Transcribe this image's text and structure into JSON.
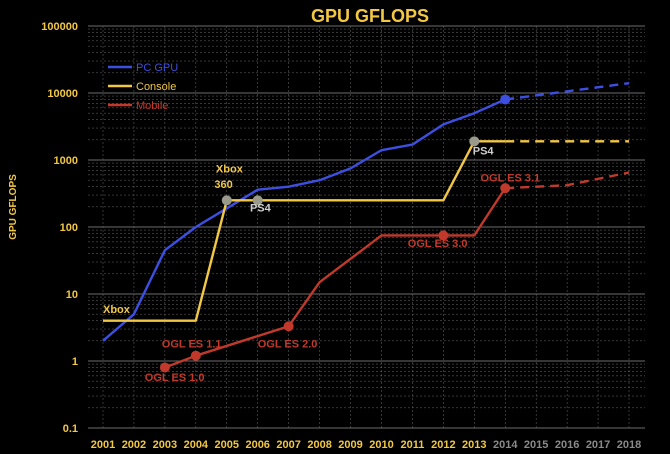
{
  "chart_data": {
    "type": "line",
    "title": "GPU GFLOPS",
    "ylabel": "GPU GFLOPS",
    "xlabel": "",
    "yscale": "log",
    "ylim": [
      0.1,
      100000
    ],
    "xlim": [
      2001,
      2018
    ],
    "grid": true,
    "legend_position": "top-left",
    "colors": {
      "background": "#000000",
      "axis_text_y": "#f2c744",
      "axis_text_x": "#f2c744",
      "axis_text_x_future": "#8a8a8a",
      "grid": "#6b6b6b",
      "title": "#f2c744",
      "marker_gray": "#9a9a8a"
    },
    "y_ticks": [
      {
        "value": 0.1,
        "label": "0.1"
      },
      {
        "value": 1,
        "label": "1"
      },
      {
        "value": 10,
        "label": "10"
      },
      {
        "value": 100,
        "label": "100"
      },
      {
        "value": 1000,
        "label": "1000"
      },
      {
        "value": 10000,
        "label": "10000"
      },
      {
        "value": 100000,
        "label": "100000"
      }
    ],
    "x_ticks": [
      {
        "value": 2001,
        "label": "2001",
        "future": false
      },
      {
        "value": 2002,
        "label": "2002",
        "future": false
      },
      {
        "value": 2003,
        "label": "2003",
        "future": false
      },
      {
        "value": 2004,
        "label": "2004",
        "future": false
      },
      {
        "value": 2005,
        "label": "2005",
        "future": false
      },
      {
        "value": 2006,
        "label": "2006",
        "future": false
      },
      {
        "value": 2007,
        "label": "2007",
        "future": false
      },
      {
        "value": 2008,
        "label": "2008",
        "future": false
      },
      {
        "value": 2009,
        "label": "2009",
        "future": false
      },
      {
        "value": 2010,
        "label": "2010",
        "future": false
      },
      {
        "value": 2011,
        "label": "2011",
        "future": false
      },
      {
        "value": 2012,
        "label": "2012",
        "future": false
      },
      {
        "value": 2013,
        "label": "2013",
        "future": false
      },
      {
        "value": 2014,
        "label": "2014",
        "future": true
      },
      {
        "value": 2015,
        "label": "2015",
        "future": true
      },
      {
        "value": 2016,
        "label": "2016",
        "future": true
      },
      {
        "value": 2017,
        "label": "2017",
        "future": true
      },
      {
        "value": 2018,
        "label": "2018",
        "future": true
      }
    ],
    "series": [
      {
        "name": "PC GPU",
        "color": "#3d4fe0",
        "points": [
          {
            "x": 2001,
            "y": 2
          },
          {
            "x": 2002,
            "y": 5
          },
          {
            "x": 2003,
            "y": 45
          },
          {
            "x": 2004,
            "y": 100
          },
          {
            "x": 2005,
            "y": 190
          },
          {
            "x": 2006,
            "y": 360
          },
          {
            "x": 2007,
            "y": 400
          },
          {
            "x": 2008,
            "y": 500
          },
          {
            "x": 2009,
            "y": 750
          },
          {
            "x": 2010,
            "y": 1400
          },
          {
            "x": 2011,
            "y": 1700
          },
          {
            "x": 2012,
            "y": 3400
          },
          {
            "x": 2013,
            "y": 5000
          },
          {
            "x": 2014,
            "y": 8000
          }
        ],
        "projection": [
          {
            "x": 2014,
            "y": 8000
          },
          {
            "x": 2018,
            "y": 14000
          }
        ],
        "markers": [
          {
            "x": 2014,
            "y": 8000,
            "color": "#3d4fe0"
          }
        ]
      },
      {
        "name": "Console",
        "color": "#f2c744",
        "points": [
          {
            "x": 2001,
            "y": 4
          },
          {
            "x": 2004,
            "y": 4
          },
          {
            "x": 2005,
            "y": 250
          },
          {
            "x": 2012,
            "y": 250
          },
          {
            "x": 2013,
            "y": 1900
          },
          {
            "x": 2014,
            "y": 1900
          }
        ],
        "projection": [
          {
            "x": 2014,
            "y": 1900
          },
          {
            "x": 2018,
            "y": 1900
          }
        ],
        "markers": [
          {
            "x": 2005,
            "y": 250,
            "color": "#9a9a8a"
          },
          {
            "x": 2006,
            "y": 250,
            "color": "#9a9a8a"
          },
          {
            "x": 2013,
            "y": 1900,
            "color": "#9a9a8a"
          }
        ]
      },
      {
        "name": "Mobile",
        "color": "#c0392b",
        "points": [
          {
            "x": 2003,
            "y": 0.8
          },
          {
            "x": 2004,
            "y": 1.2
          },
          {
            "x": 2007,
            "y": 3.3
          },
          {
            "x": 2008,
            "y": 15
          },
          {
            "x": 2010,
            "y": 75
          },
          {
            "x": 2012,
            "y": 75
          },
          {
            "x": 2013,
            "y": 75
          },
          {
            "x": 2014,
            "y": 380
          }
        ],
        "projection": [
          {
            "x": 2014,
            "y": 380
          },
          {
            "x": 2016,
            "y": 420
          },
          {
            "x": 2018,
            "y": 650
          }
        ],
        "markers": [
          {
            "x": 2003,
            "y": 0.8,
            "color": "#c0392b"
          },
          {
            "x": 2004,
            "y": 1.2,
            "color": "#c0392b"
          },
          {
            "x": 2007,
            "y": 3.3,
            "color": "#c0392b"
          },
          {
            "x": 2012,
            "y": 75,
            "color": "#c0392b"
          },
          {
            "x": 2014,
            "y": 380,
            "color": "#c0392b"
          }
        ]
      }
    ],
    "annotations": [
      {
        "text": "Xbox",
        "x": 2001.0,
        "y": 5.2,
        "color": "#f2c744"
      },
      {
        "text": "Xbox",
        "x": 2004.65,
        "y": 650,
        "color": "#f2c744"
      },
      {
        "text": "360",
        "x": 2004.6,
        "y": 380,
        "color": "#f2c744"
      },
      {
        "text": "PS4",
        "x": 2005.75,
        "y": 170,
        "color": "#cfcfcf"
      },
      {
        "text": "PS4",
        "x": 2012.95,
        "y": 1200,
        "color": "#cfcfcf"
      },
      {
        "text": "OGL ES 1.0",
        "x": 2002.35,
        "y": 0.5,
        "color": "#c0392b"
      },
      {
        "text": "OGL ES 1.1",
        "x": 2002.9,
        "y": 1.6,
        "color": "#c0392b"
      },
      {
        "text": "OGL ES 2.0",
        "x": 2006.0,
        "y": 1.6,
        "color": "#c0392b"
      },
      {
        "text": "OGL ES 3.0",
        "x": 2010.85,
        "y": 50,
        "color": "#c0392b"
      },
      {
        "text": "OGL ES 3.1",
        "x": 2013.2,
        "y": 480,
        "color": "#c0392b"
      }
    ]
  }
}
